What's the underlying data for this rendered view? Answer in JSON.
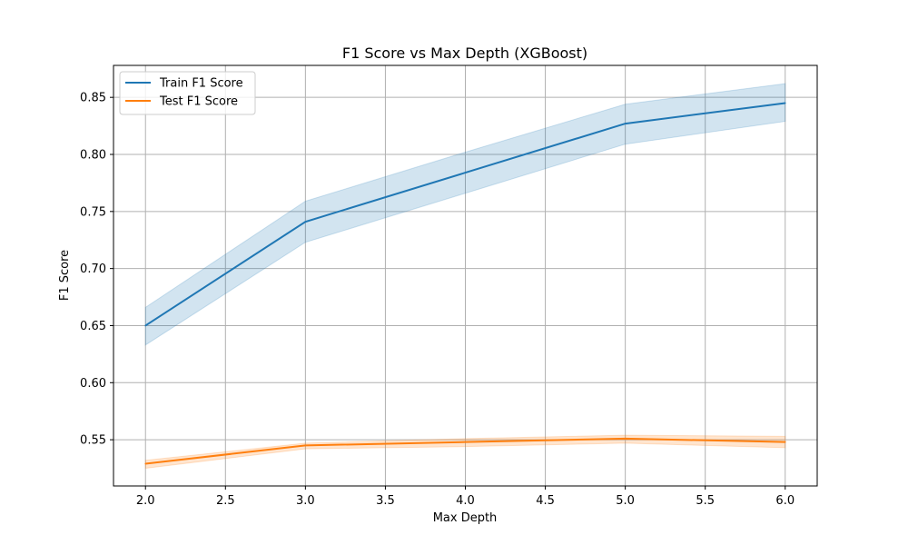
{
  "chart_data": {
    "type": "line",
    "title": "F1 Score vs Max Depth (XGBoost)",
    "xlabel": "Max Depth",
    "ylabel": "F1 Score",
    "xlim": [
      1.8,
      6.2
    ],
    "ylim": [
      0.5095,
      0.878
    ],
    "xticks": [
      2.0,
      2.5,
      3.0,
      3.5,
      4.0,
      4.5,
      5.0,
      5.5,
      6.0
    ],
    "xtick_labels": [
      "2.0",
      "2.5",
      "3.0",
      "3.5",
      "4.0",
      "4.5",
      "5.0",
      "5.5",
      "6.0"
    ],
    "yticks": [
      0.55,
      0.6,
      0.65,
      0.7,
      0.75,
      0.8,
      0.85
    ],
    "ytick_labels": [
      "0.55",
      "0.60",
      "0.65",
      "0.70",
      "0.75",
      "0.80",
      "0.85"
    ],
    "grid": true,
    "legend_position": "upper-left",
    "x": [
      2,
      3,
      4,
      5,
      6
    ],
    "series": [
      {
        "name": "Train F1 Score",
        "color": "#1f77b4",
        "values": [
          0.65,
          0.741,
          0.784,
          0.827,
          0.845
        ],
        "lower": [
          0.633,
          0.723,
          0.766,
          0.809,
          0.829
        ],
        "upper": [
          0.666,
          0.759,
          0.802,
          0.844,
          0.862
        ]
      },
      {
        "name": "Test F1 Score",
        "color": "#ff7f0e",
        "values": [
          0.529,
          0.545,
          0.548,
          0.551,
          0.548
        ],
        "lower": [
          0.525,
          0.542,
          0.544,
          0.547,
          0.543
        ],
        "upper": [
          0.532,
          0.547,
          0.551,
          0.554,
          0.553
        ]
      }
    ]
  }
}
